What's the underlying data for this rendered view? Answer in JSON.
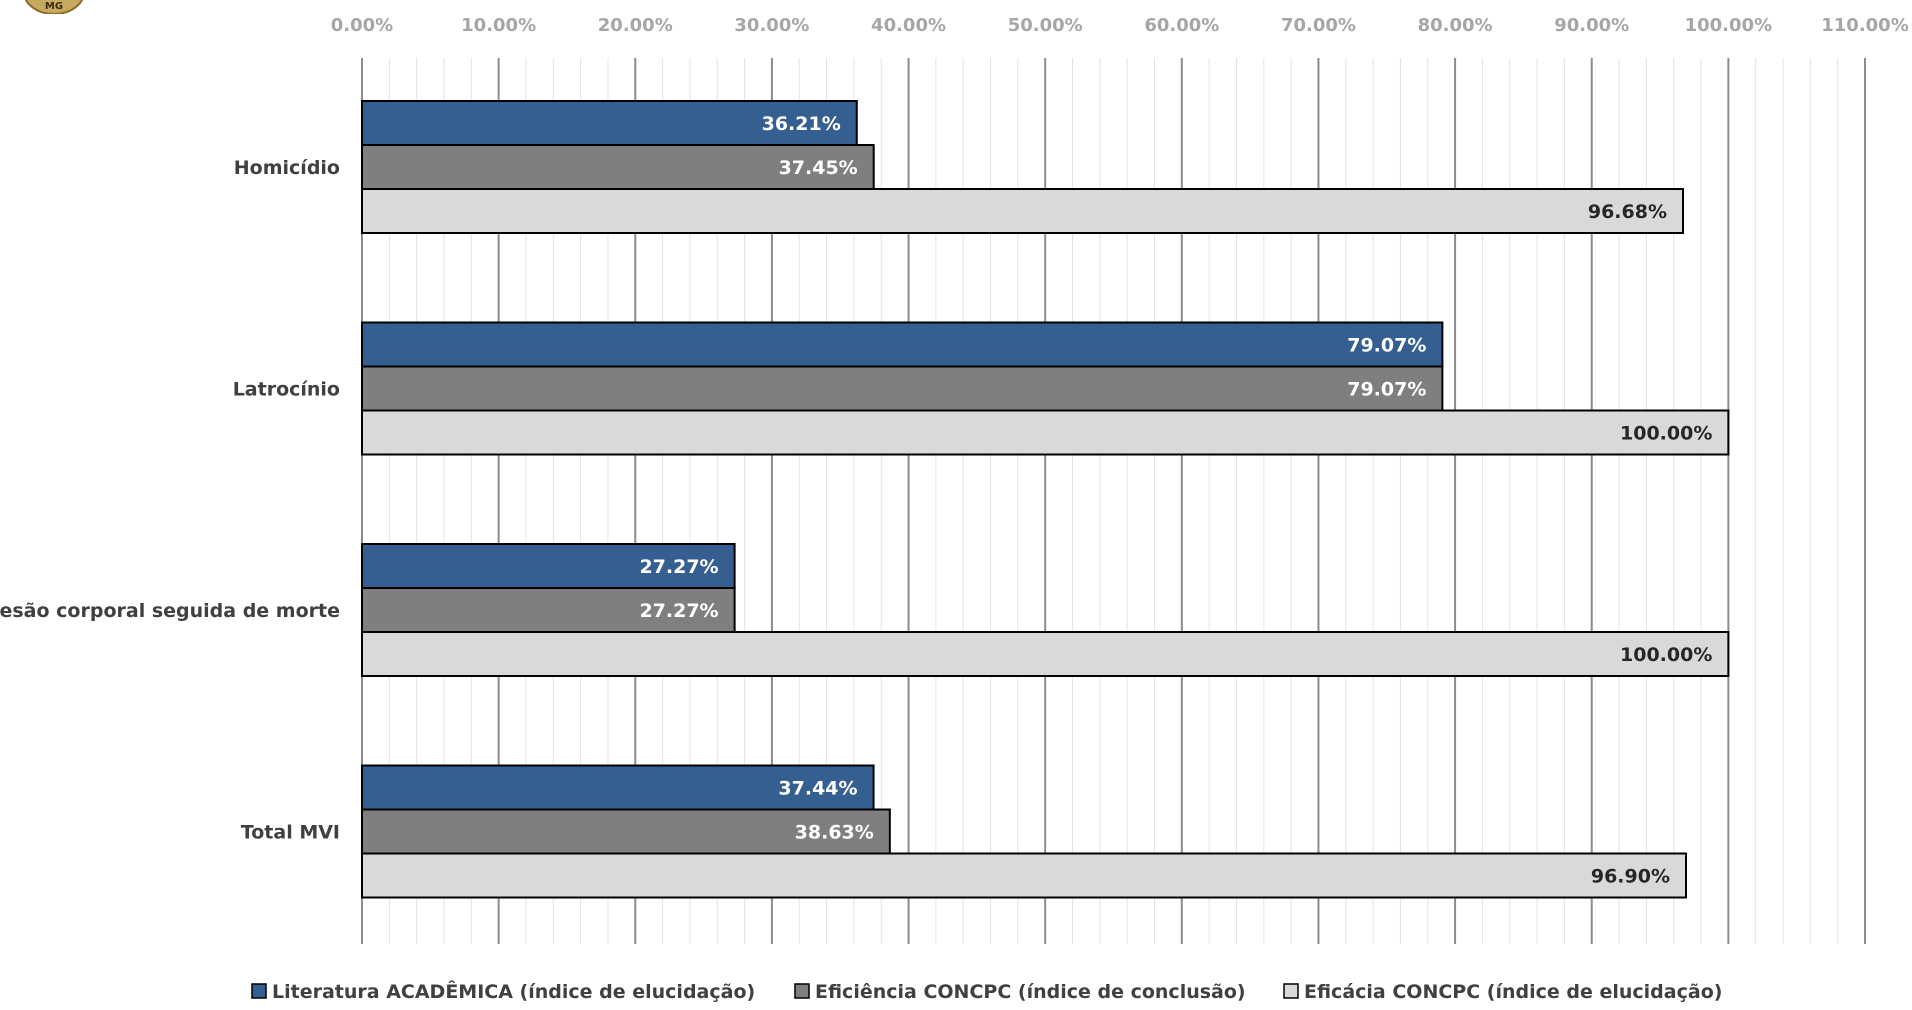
{
  "logo": {
    "text": "MG"
  },
  "chart_data": {
    "type": "bar",
    "orientation": "horizontal",
    "categories": [
      "Homicídio",
      "Latrocínio",
      "Lesão corporal seguida de morte",
      "Total MVI"
    ],
    "series": [
      {
        "name": "Literatura ACADÊMICA (índice de elucidação)",
        "values": [
          36.21,
          79.07,
          27.27,
          37.44
        ],
        "color": "#365f91",
        "label_color": "#ffffff"
      },
      {
        "name": "Eficiência CONCPC (índice de conclusão)",
        "values": [
          37.45,
          79.07,
          27.27,
          38.63
        ],
        "color": "#7f7f7f",
        "label_color": "#ffffff"
      },
      {
        "name": "Eficácia CONCPC (índice de elucidação)",
        "values": [
          96.68,
          100.0,
          100.0,
          96.9
        ],
        "color": "#d9d9d9",
        "label_color": "#262626"
      }
    ],
    "data_labels": [
      [
        "36.21%",
        "79.07%",
        "27.27%",
        "37.44%"
      ],
      [
        "37.45%",
        "79.07%",
        "27.27%",
        "38.63%"
      ],
      [
        "96.68%",
        "100.00%",
        "100.00%",
        "96.90%"
      ]
    ],
    "xlim": [
      0,
      110
    ],
    "tick_labels": [
      "0.00%",
      "10.00%",
      "20.00%",
      "30.00%",
      "40.00%",
      "50.00%",
      "60.00%",
      "70.00%",
      "80.00%",
      "90.00%",
      "100.00%",
      "110.00%"
    ],
    "major_grid": true,
    "minor_grid": true,
    "axis_position": "top",
    "legend_position": "bottom"
  }
}
